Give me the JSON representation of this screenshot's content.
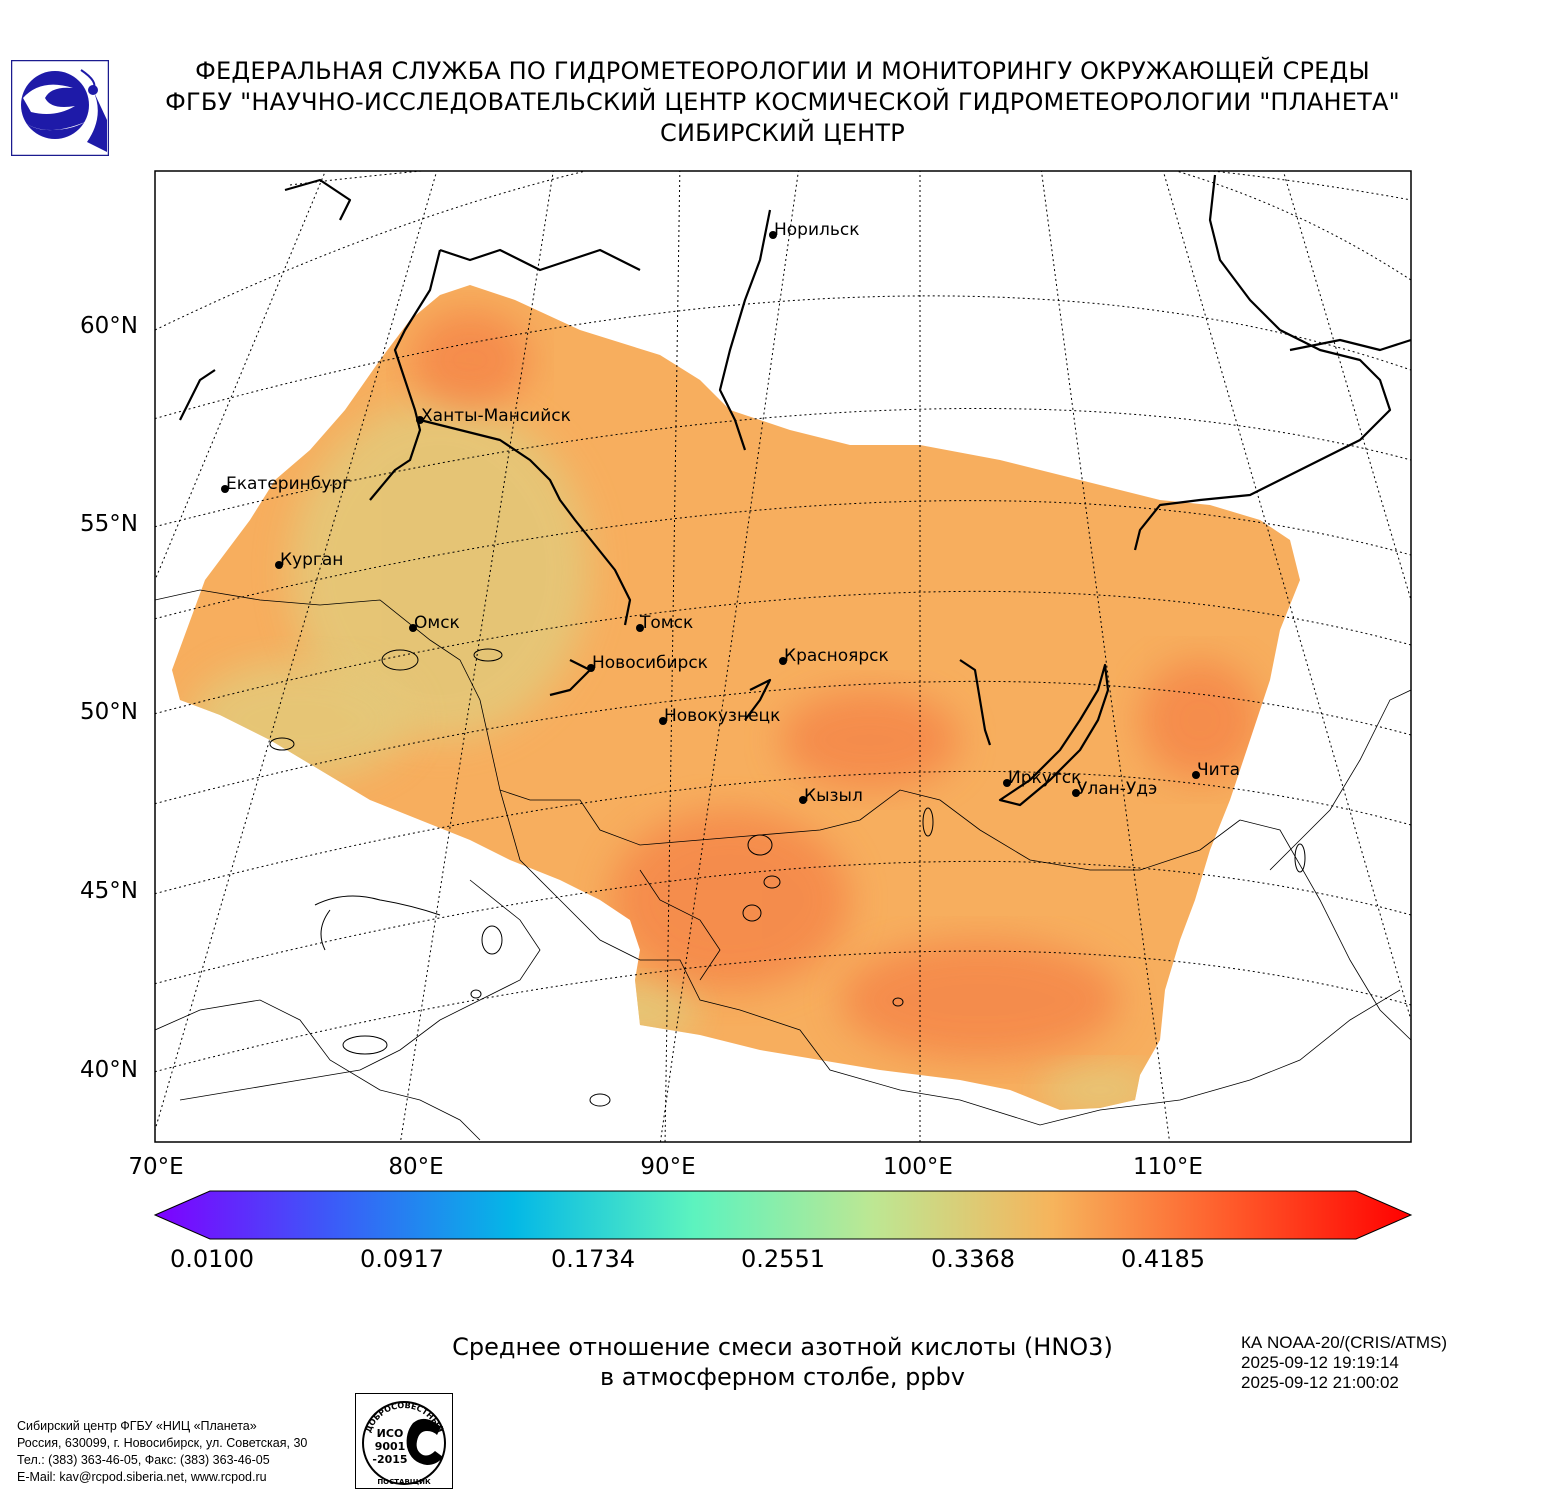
{
  "header": {
    "line1": "ФЕДЕРАЛЬНАЯ СЛУЖБА ПО ГИДРОМЕТЕОРОЛОГИИ И МОНИТОРИНГУ ОКРУЖАЮЩЕЙ СРЕДЫ",
    "line2": "ФГБУ \"НАУЧНО-ИССЛЕДОВАТЕЛЬСКИЙ ЦЕНТР КОСМИЧЕСКОЙ ГИДРОМЕТЕОРОЛОГИИ \"ПЛАНЕТА\"",
    "line3": "СИБИРСКИЙ ЦЕНТР"
  },
  "map": {
    "latitude_labels": [
      "60°N",
      "55°N",
      "50°N",
      "45°N",
      "40°N"
    ],
    "longitude_labels": [
      "70°E",
      "80°E",
      "90°E",
      "100°E",
      "110°E"
    ],
    "cities": [
      {
        "name": "Норильск"
      },
      {
        "name": "Ханты-Мансийск"
      },
      {
        "name": "Екатеринбург"
      },
      {
        "name": "Курган"
      },
      {
        "name": "Омск"
      },
      {
        "name": "Томск"
      },
      {
        "name": "Новосибирск"
      },
      {
        "name": "Красноярск"
      },
      {
        "name": "Новокузнецк"
      },
      {
        "name": "Кызыл"
      },
      {
        "name": "Иркутск"
      },
      {
        "name": "Улан-Удэ"
      },
      {
        "name": "Чита"
      }
    ],
    "field_colors": {
      "low": "#e3c97a",
      "mid": "#f7ae5e",
      "high": "#f47f44"
    }
  },
  "colorbar": {
    "tick_labels": [
      "0.0100",
      "0.0917",
      "0.1734",
      "0.2551",
      "0.3368",
      "0.4185"
    ],
    "min": 0.01,
    "max": 0.49,
    "colors": [
      "#7f00ff",
      "#3b5cf8",
      "#04b8e6",
      "#5cf3bf",
      "#bde793",
      "#f6b45c",
      "#ff5a2a",
      "#ff0000"
    ]
  },
  "caption": {
    "line1": "Среднее отношение смеси азотной кислоты (HNO3)",
    "line2": "в атмосферном столбе, ppbv"
  },
  "satellite": {
    "name": "КА NOAA-20/(CRIS/ATMS)",
    "time_start": "2025-09-12 19:19:14",
    "time_end": "2025-09-12 21:00:02"
  },
  "organization": {
    "line1": "Сибирский центр ФГБУ «НИЦ «Планета»",
    "line2": "Россия, 630099, г. Новосибирск, ул. Советская, 30",
    "line3": "Тел.: (383) 363-46-05, Факс: (383) 363-46-05",
    "line4": "E-Mail: kav@rcpod.siberia.net, www.rcpod.ru"
  },
  "iso_logo": {
    "top_text": "ДОБРОСОВЕСТНЫЙ",
    "iso": "ИСО",
    "number": "9001",
    "year": "-2015",
    "bottom_text": "ПОСТАВЩИК"
  }
}
